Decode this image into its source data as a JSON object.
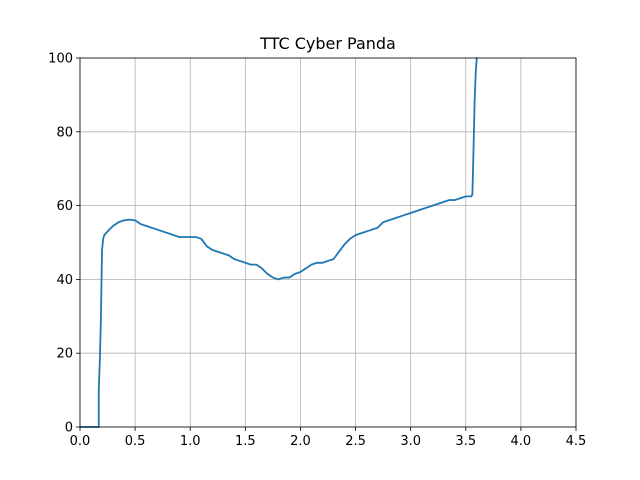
{
  "chart_data": {
    "type": "line",
    "title": "TTC Cyber Panda",
    "xlabel": "",
    "ylabel": "",
    "xlim": [
      0.0,
      4.5
    ],
    "ylim": [
      0,
      100
    ],
    "xticks": [
      "0.0",
      "0.5",
      "1.0",
      "1.5",
      "2.0",
      "2.5",
      "3.0",
      "3.5",
      "4.0",
      "4.5"
    ],
    "yticks": [
      "0",
      "20",
      "40",
      "60",
      "80",
      "100"
    ],
    "grid": true,
    "colors": {
      "line": "#1f77b4",
      "grid": "#b0b0b0"
    },
    "series": [
      {
        "x": [
          0.0,
          0.1,
          0.17,
          0.17,
          0.18,
          0.19,
          0.2,
          0.21,
          0.22,
          0.25,
          0.3,
          0.35,
          0.4,
          0.45,
          0.5,
          0.55,
          0.6,
          0.65,
          0.7,
          0.75,
          0.8,
          0.85,
          0.9,
          0.95,
          1.0,
          1.05,
          1.1,
          1.15,
          1.2,
          1.25,
          1.3,
          1.35,
          1.4,
          1.45,
          1.5,
          1.55,
          1.6,
          1.65,
          1.7,
          1.75,
          1.8,
          1.85,
          1.9,
          1.95,
          2.0,
          2.05,
          2.1,
          2.15,
          2.2,
          2.25,
          2.3,
          2.35,
          2.4,
          2.45,
          2.5,
          2.55,
          2.6,
          2.65,
          2.7,
          2.75,
          2.8,
          2.85,
          2.9,
          2.95,
          3.0,
          3.05,
          3.1,
          3.15,
          3.2,
          3.25,
          3.3,
          3.35,
          3.4,
          3.45,
          3.5,
          3.55,
          3.56,
          3.57,
          3.58,
          3.59,
          3.6
        ],
        "y": [
          0,
          0,
          0,
          10,
          18,
          30,
          48,
          51,
          52,
          53,
          54.5,
          55.5,
          56,
          56.2,
          56,
          55,
          54.5,
          54,
          53.5,
          53,
          52.5,
          52,
          51.5,
          51.5,
          51.5,
          51.5,
          51,
          49,
          48,
          47.5,
          47,
          46.5,
          45.5,
          45,
          44.5,
          44,
          44,
          43,
          41.5,
          40.5,
          40,
          40.5,
          40.5,
          41.5,
          42,
          43,
          44,
          44.5,
          44.5,
          45,
          45.5,
          47.5,
          49.5,
          51,
          52,
          52.5,
          53,
          53.5,
          54,
          55.5,
          56,
          56.5,
          57,
          57.5,
          58,
          58.5,
          59,
          59.5,
          60,
          60.5,
          61,
          61.5,
          61.5,
          62,
          62.5,
          62.5,
          63,
          75,
          88,
          96,
          100
        ]
      }
    ]
  }
}
